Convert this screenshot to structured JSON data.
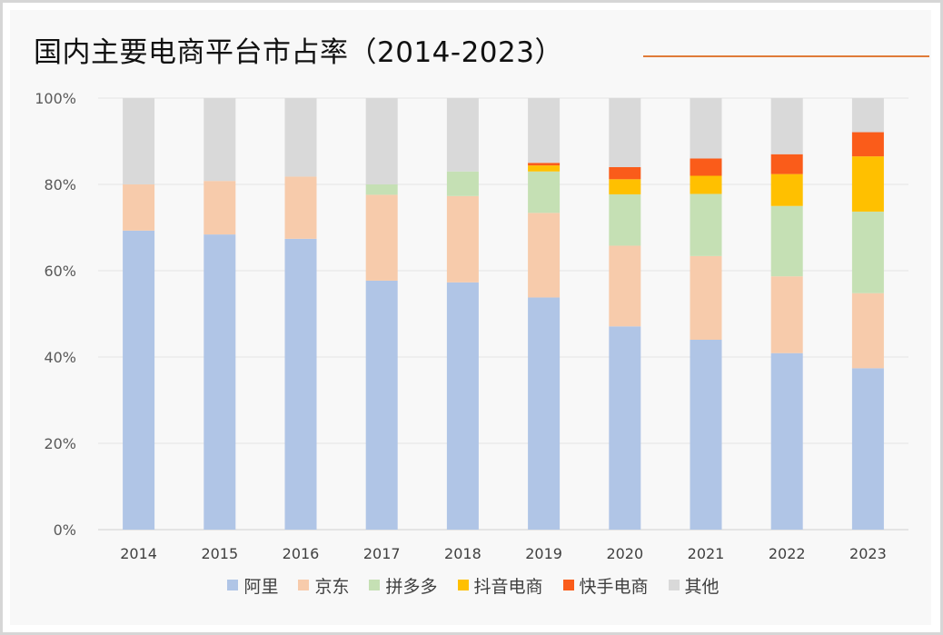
{
  "title": "国内主要电商平台市占率（2014-2023）",
  "accent_color": "#e07b39",
  "chart_data": {
    "type": "bar",
    "stacked": true,
    "percent": true,
    "title": "国内主要电商平台市占率（2014-2023）",
    "xlabel": "",
    "ylabel": "",
    "ylim": [
      0,
      100
    ],
    "yticks": [
      "0%",
      "20%",
      "40%",
      "60%",
      "80%",
      "100%"
    ],
    "ytick_values": [
      0,
      20,
      40,
      60,
      80,
      100
    ],
    "grid": true,
    "legend_position": "bottom",
    "categories": [
      "2014",
      "2015",
      "2016",
      "2017",
      "2018",
      "2019",
      "2020",
      "2021",
      "2022",
      "2023"
    ],
    "series": [
      {
        "name": "阿里",
        "color": "#b0c5e6",
        "values": [
          69.3,
          68.4,
          67.4,
          57.7,
          57.3,
          53.8,
          47.1,
          44.0,
          40.9,
          37.4
        ]
      },
      {
        "name": "京东",
        "color": "#f7cbab",
        "values": [
          10.7,
          12.4,
          14.4,
          19.9,
          20.0,
          19.6,
          18.7,
          19.4,
          17.8,
          17.4
        ]
      },
      {
        "name": "拼多多",
        "color": "#c5e0b4",
        "values": [
          0,
          0,
          0,
          2.4,
          5.7,
          9.6,
          11.9,
          14.4,
          16.3,
          18.9
        ]
      },
      {
        "name": "抖音电商",
        "color": "#ffc000",
        "values": [
          0,
          0,
          0,
          0,
          0,
          1.4,
          3.5,
          4.2,
          7.4,
          12.8
        ]
      },
      {
        "name": "快手电商",
        "color": "#fa5c1a",
        "values": [
          0,
          0,
          0,
          0,
          0,
          0.6,
          2.8,
          4.0,
          4.6,
          5.6
        ]
      },
      {
        "name": "其他",
        "color": "#d9d9d9",
        "values": [
          20.0,
          19.2,
          18.2,
          20.0,
          17.0,
          15.0,
          16.0,
          14.0,
          13.0,
          7.9
        ]
      }
    ]
  }
}
